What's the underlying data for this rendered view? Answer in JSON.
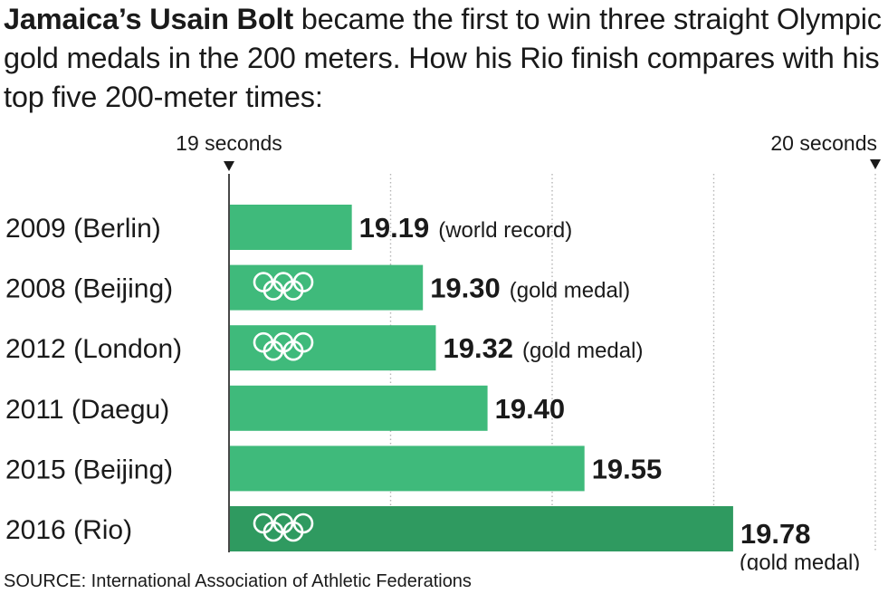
{
  "title": {
    "lead": "Jamaica’s Usain Bolt",
    "rest": " became the first to win three straight Olympic gold medals in the 200 meters. How his Rio finish compares with his top five 200-meter times:"
  },
  "source": "SOURCE: International Association of Athletic Federations",
  "colors": {
    "bar": "#3fba7b",
    "bar_highlight": "#2f9a60",
    "gridline": "#b5b5b5",
    "axis": "#1a1a1a",
    "rings": "#ffffff"
  },
  "chart_data": {
    "type": "bar",
    "orientation": "horizontal",
    "xlim": [
      19.0,
      20.0
    ],
    "x_range_labels": {
      "min": "19 seconds",
      "max": "20 seconds"
    },
    "grid": true,
    "categories": [
      "2009 (Berlin)",
      "2008 (Beijing)",
      "2012 (London)",
      "2011 (Daegu)",
      "2015 (Beijing)",
      "2016 (Rio)"
    ],
    "values": [
      19.19,
      19.3,
      19.32,
      19.4,
      19.55,
      19.78
    ],
    "value_labels": [
      "19.19",
      "19.30",
      "19.32",
      "19.40",
      "19.55",
      "19.78"
    ],
    "notes": [
      "(world record)",
      "(gold medal)",
      "(gold medal)",
      "",
      "",
      "(gold medal)"
    ],
    "olympic_rings": [
      false,
      true,
      true,
      false,
      false,
      true
    ],
    "highlight": [
      false,
      false,
      false,
      false,
      false,
      true
    ]
  }
}
